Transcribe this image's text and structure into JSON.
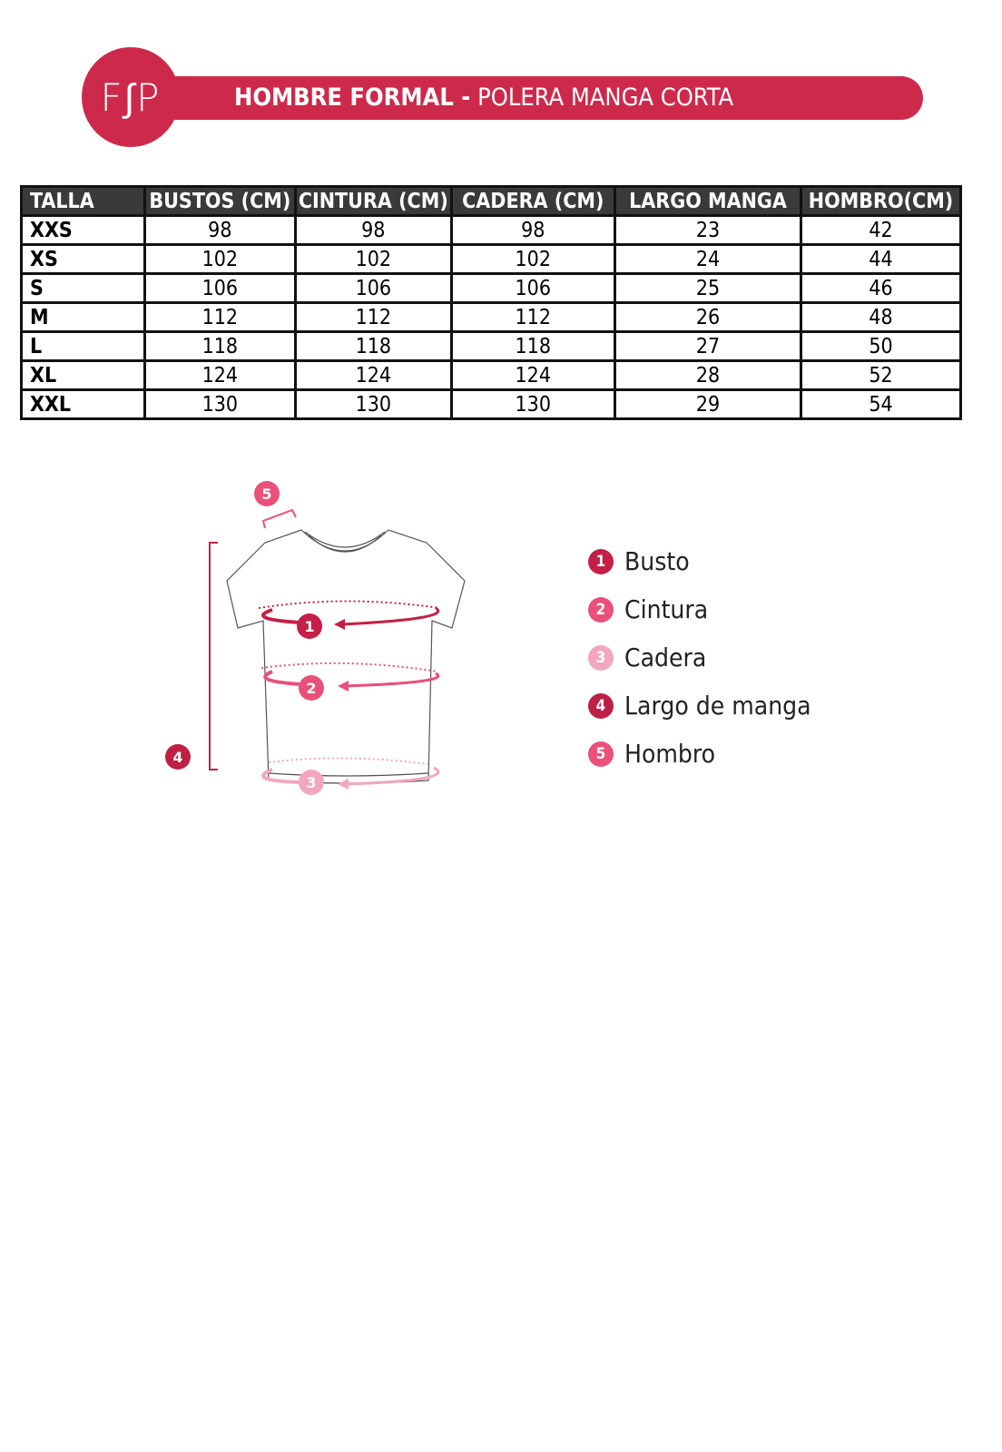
{
  "logo": "F∫P",
  "header": {
    "title_bold": "HOMBRE FORMAL -",
    "title_light": "POLERA MANGA CORTA"
  },
  "brand_color": "#cd2a4b",
  "table": {
    "headers": [
      "TALLA",
      "BUSTOS (CM)",
      "CINTURA (CM)",
      "CADERA (CM)",
      "LARGO MANGA",
      "HOMBRO(CM)"
    ],
    "rows": [
      [
        "XXS",
        "98",
        "98",
        "98",
        "23",
        "42"
      ],
      [
        "XS",
        "102",
        "102",
        "102",
        "24",
        "44"
      ],
      [
        "S",
        "106",
        "106",
        "106",
        "25",
        "46"
      ],
      [
        "M",
        "112",
        "112",
        "112",
        "26",
        "48"
      ],
      [
        "L",
        "118",
        "118",
        "118",
        "27",
        "50"
      ],
      [
        "XL",
        "124",
        "124",
        "124",
        "28",
        "52"
      ],
      [
        "XXL",
        "130",
        "130",
        "130",
        "29",
        "54"
      ]
    ]
  },
  "diagram": {
    "markers": [
      "1",
      "2",
      "3",
      "4",
      "5"
    ]
  },
  "legend": [
    {
      "num": "1",
      "label": "Busto",
      "color": "#c41f45"
    },
    {
      "num": "2",
      "label": "Cintura",
      "color": "#e8507a"
    },
    {
      "num": "3",
      "label": "Cadera",
      "color": "#f2a6bf"
    },
    {
      "num": "4",
      "label": "Largo de manga",
      "color": "#be1f44"
    },
    {
      "num": "5",
      "label": "Hombro",
      "color": "#ea5078"
    }
  ]
}
